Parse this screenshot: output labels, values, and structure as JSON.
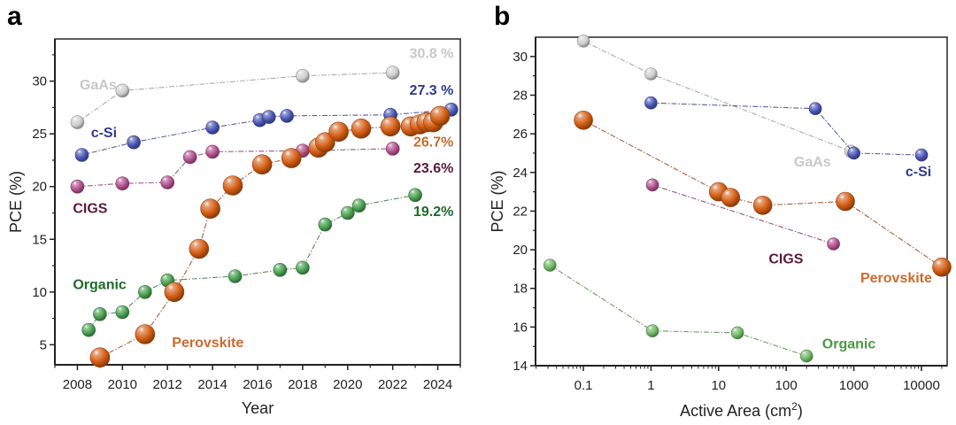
{
  "chart_data": [
    {
      "panel": "a",
      "type": "scatter",
      "title": "",
      "xlabel": "Year",
      "ylabel": "PCE (%)",
      "xscale": "linear",
      "xlim": [
        2007,
        2025
      ],
      "ylim": [
        3.1,
        34
      ],
      "xticks": [
        2008,
        2010,
        2012,
        2014,
        2016,
        2018,
        2020,
        2022,
        2024
      ],
      "xtick_labels": [
        "2008",
        "2010",
        "2012",
        "2014",
        "2016",
        "2018",
        "2020",
        "2022",
        "2024"
      ],
      "yticks": [
        5,
        10,
        15,
        20,
        25,
        30
      ],
      "ytick_labels": [
        "5",
        "10",
        "15",
        "20",
        "25",
        "30"
      ],
      "grid": false,
      "series": [
        {
          "name": "GaAs",
          "color": "#cfcfcf",
          "label_color": "#c8c8c8",
          "marker": "small",
          "x": [
            2008,
            2010,
            2018,
            2022
          ],
          "y": [
            26.1,
            29.1,
            30.5,
            30.8
          ]
        },
        {
          "name": "c-Si",
          "color": "#4a56b5",
          "label_color": "#2e3a93",
          "marker": "small",
          "x": [
            2008.2,
            2010.5,
            2014,
            2016.1,
            2016.5,
            2017.3,
            2021.9,
            2024.6
          ],
          "y": [
            23.0,
            24.2,
            25.6,
            26.3,
            26.6,
            26.7,
            26.8,
            27.3
          ]
        },
        {
          "name": "CIGS",
          "color": "#b2508f",
          "label_color": "#5c1a3c",
          "marker": "small",
          "x": [
            2008,
            2010,
            2012,
            2013,
            2014,
            2018,
            2022
          ],
          "y": [
            20.0,
            20.3,
            20.4,
            22.8,
            23.3,
            23.4,
            23.6
          ]
        },
        {
          "name": "Organic",
          "color": "#4aa052",
          "label_color": "#1e6b2a",
          "marker": "small",
          "x": [
            2008.5,
            2009,
            2010,
            2011,
            2012,
            2015,
            2017,
            2018,
            2019,
            2020,
            2020.5,
            2023
          ],
          "y": [
            6.4,
            7.9,
            8.1,
            10.0,
            11.1,
            11.5,
            12.1,
            12.3,
            16.4,
            17.5,
            18.2,
            19.2
          ]
        },
        {
          "name": "Perovskite",
          "color": "#d35c12",
          "label_color": "#cc6a2e",
          "marker": "large",
          "x": [
            2009,
            2011,
            2012.3,
            2013.4,
            2013.9,
            2014.9,
            2016.2,
            2017.5,
            2018.7,
            2019,
            2019.6,
            2020.6,
            2021.9,
            2022.8,
            2023.2,
            2023.5,
            2023.8,
            2024.1
          ],
          "y": [
            3.8,
            6.0,
            10.0,
            14.1,
            17.9,
            20.1,
            22.1,
            22.7,
            23.7,
            24.2,
            25.2,
            25.5,
            25.7,
            25.7,
            25.9,
            26.1,
            26.1,
            26.7
          ]
        }
      ],
      "series_labels": [
        {
          "text": "GaAs",
          "series": "GaAs",
          "x": 2008.1,
          "y": 29.2
        },
        {
          "text": "c-Si",
          "series": "c-Si",
          "x": 2008.6,
          "y": 24.7
        },
        {
          "text": "CIGS",
          "series": "CIGS",
          "x": 2007.8,
          "y": 17.5
        },
        {
          "text": "Organic",
          "series": "Organic",
          "x": 2007.8,
          "y": 10.3
        },
        {
          "text": "Perovskite",
          "series": "Perovskite",
          "x": 2012.2,
          "y": 4.8
        }
      ],
      "annotations": [
        {
          "text": "30.8 %",
          "series": "GaAs",
          "x": 2024.7,
          "y": 32.2
        },
        {
          "text": "27.3 %",
          "series": "c-Si",
          "x": 2024.7,
          "y": 28.7
        },
        {
          "text": "26.7%",
          "series": "Perovskite",
          "x": 2024.7,
          "y": 23.8
        },
        {
          "text": "23.6%",
          "series": "CIGS",
          "x": 2024.7,
          "y": 21.3
        },
        {
          "text": "19.2%",
          "series": "Organic",
          "x": 2024.7,
          "y": 17.2
        }
      ]
    },
    {
      "panel": "b",
      "type": "scatter",
      "title": "",
      "xlabel": "Active Area (cm",
      "xlabel_sup": "2",
      "xlabel_end": ")",
      "ylabel": "PCE (%)",
      "xscale": "log",
      "xlim": [
        0.0196,
        24000
      ],
      "ylim": [
        14,
        31
      ],
      "xticks": [
        0.1,
        1,
        10,
        100,
        1000,
        10000
      ],
      "xtick_labels": [
        "0.1",
        "1",
        "10",
        "100",
        "1000",
        "10000"
      ],
      "yticks": [
        14,
        16,
        18,
        20,
        22,
        24,
        26,
        28,
        30
      ],
      "ytick_labels": [
        "14",
        "16",
        "18",
        "20",
        "22",
        "24",
        "26",
        "28",
        "30"
      ],
      "grid": false,
      "series": [
        {
          "name": "GaAs",
          "color": "#cfcfcf",
          "label_color": "#c8c8c8",
          "marker": "small",
          "x": [
            0.1,
            1,
            900
          ],
          "y": [
            30.8,
            29.1,
            25.1
          ]
        },
        {
          "name": "c-Si",
          "color": "#4a56b5",
          "label_color": "#2e3a93",
          "marker": "small",
          "x": [
            1,
            270,
            1000,
            10000
          ],
          "y": [
            27.6,
            27.3,
            25.0,
            24.9
          ]
        },
        {
          "name": "CIGS",
          "color": "#b2508f",
          "label_color": "#5c1a3c",
          "marker": "small",
          "x": [
            1.05,
            500
          ],
          "y": [
            23.35,
            20.3
          ]
        },
        {
          "name": "Perovskite",
          "color": "#d35c12",
          "label_color": "#cc6a2e",
          "marker": "large",
          "x": [
            0.1,
            10,
            15,
            45,
            750,
            20000
          ],
          "y": [
            26.7,
            23.0,
            22.7,
            22.3,
            22.5,
            19.1
          ]
        },
        {
          "name": "Organic",
          "color": "#72b868",
          "label_color": "#4a9a44",
          "marker": "small",
          "x": [
            0.032,
            1.05,
            19,
            200
          ],
          "y": [
            19.2,
            15.8,
            15.7,
            14.5
          ]
        }
      ],
      "series_labels": [
        {
          "text": "GaAs",
          "series": "GaAs",
          "x": 130,
          "y": 24.3
        },
        {
          "text": "c-Si",
          "series": "c-Si",
          "x": 5800,
          "y": 23.8
        },
        {
          "text": "CIGS",
          "series": "CIGS",
          "x": 55,
          "y": 19.3
        },
        {
          "text": "Perovskite",
          "series": "Perovskite",
          "x": 1250,
          "y": 18.3
        },
        {
          "text": "Organic",
          "series": "Organic",
          "x": 340,
          "y": 14.9
        }
      ],
      "annotations": []
    }
  ],
  "panel_labels": [
    "a",
    "b"
  ]
}
